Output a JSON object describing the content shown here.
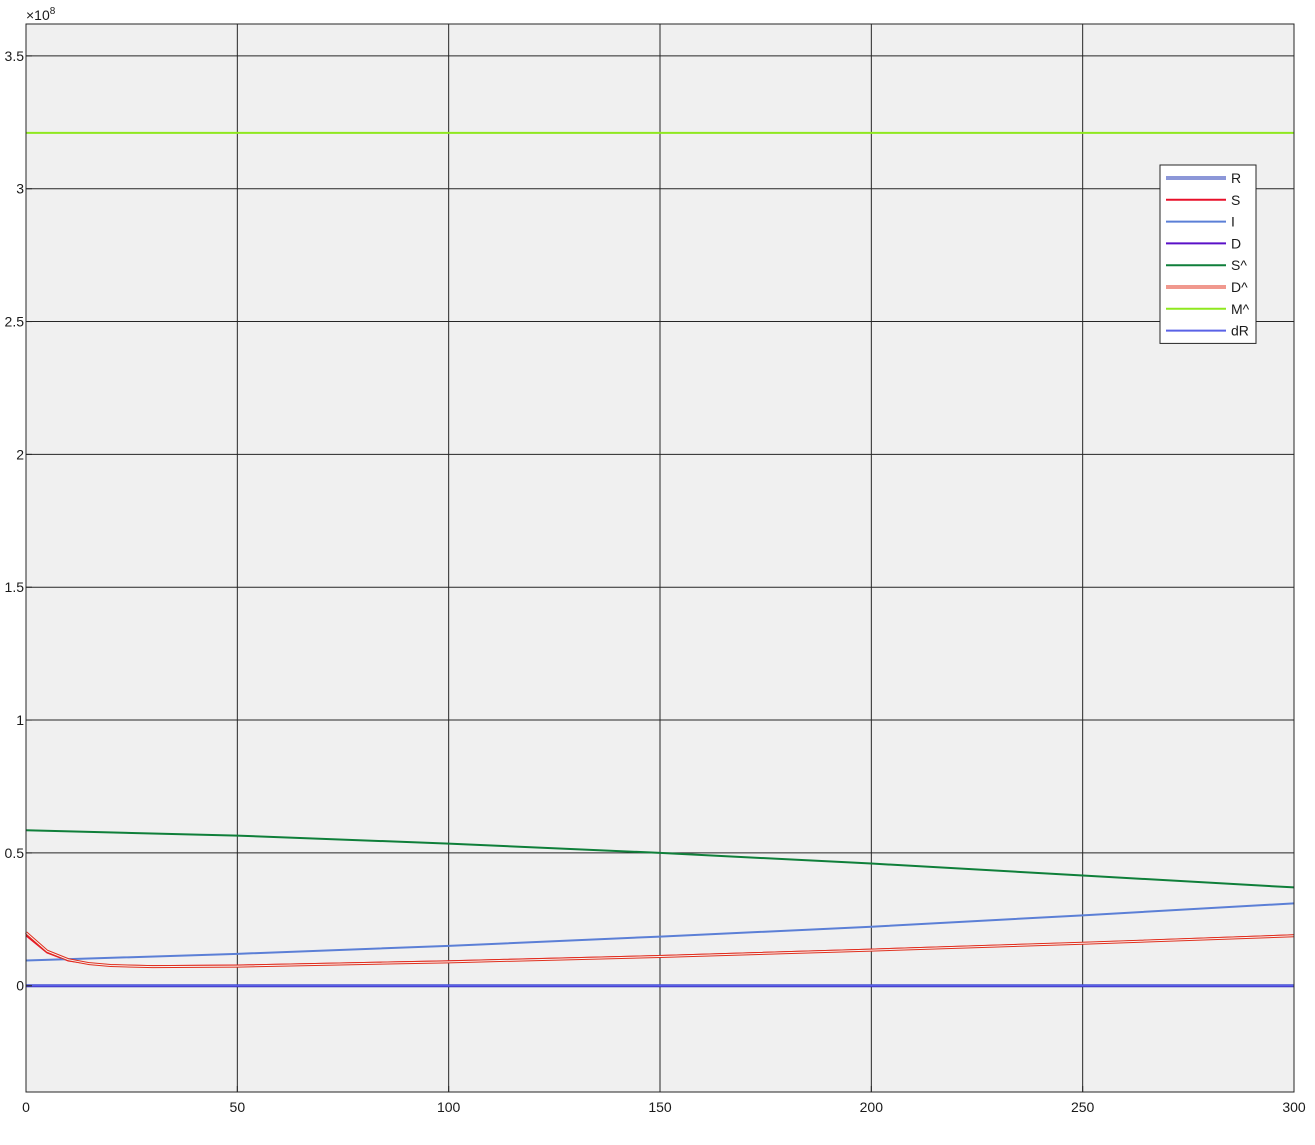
{
  "chart_data": {
    "type": "line",
    "title": "",
    "xlabel": "",
    "ylabel": "",
    "y_exponent_base": "×10",
    "y_exponent_power": "8",
    "xlim": [
      0,
      300
    ],
    "ylim": [
      -0.4,
      3.62
    ],
    "xticks": [
      0,
      50,
      100,
      150,
      200,
      250,
      300
    ],
    "xtick_labels": [
      "0",
      "50",
      "100",
      "150",
      "200",
      "250",
      "300"
    ],
    "yticks": [
      0,
      0.5,
      1,
      1.5,
      2,
      2.5,
      3,
      3.5
    ],
    "ytick_labels": [
      "0",
      "0.5",
      "1",
      "1.5",
      "2",
      "2.5",
      "3",
      "3.5"
    ],
    "grid": true,
    "legend_position": "top-right",
    "series": [
      {
        "name": "R",
        "color": "#1a2fb0",
        "double": true,
        "x": [
          0,
          300
        ],
        "y": [
          0,
          0
        ]
      },
      {
        "name": "S",
        "color": "#e8102a",
        "x": [
          0,
          5,
          10,
          15,
          20,
          30,
          50,
          100,
          150,
          200,
          250,
          300
        ],
        "y": [
          0.19,
          0.125,
          0.095,
          0.083,
          0.077,
          0.074,
          0.076,
          0.092,
          0.112,
          0.136,
          0.161,
          0.19
        ]
      },
      {
        "name": "I",
        "color": "#5b7fd6",
        "x": [
          0,
          50,
          100,
          150,
          200,
          250,
          300
        ],
        "y": [
          0.095,
          0.12,
          0.15,
          0.185,
          0.222,
          0.265,
          0.31
        ]
      },
      {
        "name": "D",
        "color": "#5a10c8",
        "x": [
          0,
          300
        ],
        "y": [
          0,
          0
        ]
      },
      {
        "name": "S^",
        "color": "#0f7f3a",
        "x": [
          0,
          50,
          100,
          150,
          200,
          250,
          300
        ],
        "y": [
          0.585,
          0.565,
          0.535,
          0.5,
          0.46,
          0.415,
          0.37
        ]
      },
      {
        "name": "D^",
        "color": "#e0301e",
        "double": true,
        "x": [
          0,
          5,
          10,
          15,
          20,
          30,
          50,
          100,
          150,
          200,
          250,
          300
        ],
        "y": [
          0.2,
          0.13,
          0.098,
          0.083,
          0.076,
          0.072,
          0.074,
          0.09,
          0.11,
          0.134,
          0.16,
          0.188
        ]
      },
      {
        "name": "M^",
        "color": "#8fe81f",
        "x": [
          0,
          300
        ],
        "y": [
          3.21,
          3.21
        ]
      },
      {
        "name": "dR",
        "color": "#5a62e6",
        "x": [
          0,
          300
        ],
        "y": [
          0.001,
          0.001
        ]
      }
    ]
  }
}
